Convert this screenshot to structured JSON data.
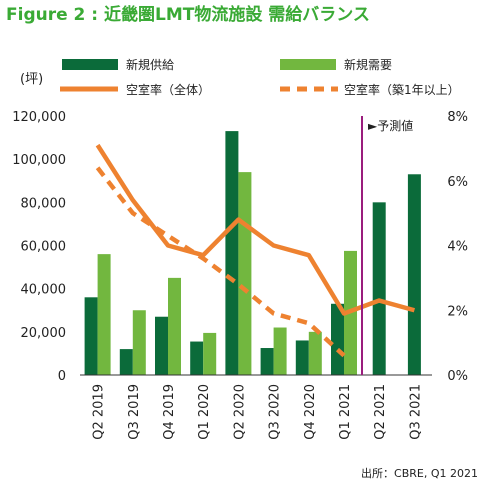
{
  "colors": {
    "supply": "#0b6b3a",
    "demand": "#72b73f",
    "vacancy_all": "#ee8230",
    "vacancy_new": "#ee8230",
    "forecast_line": "#9a1d7d",
    "title": "#3aaa35"
  },
  "chart_data": {
    "type": "bar",
    "title": "Figure 2 : 近畿圏LMT物流施設 需給バランス",
    "ylabel_left": "(坪)",
    "categories": [
      "Q2 2019",
      "Q3 2019",
      "Q4 2019",
      "Q1 2020",
      "Q2 2020",
      "Q3 2020",
      "Q4 2020",
      "Q1 2021",
      "Q2 2021",
      "Q3 2021"
    ],
    "y_left": {
      "min": 0,
      "max": 120000,
      "ticks": [
        "0",
        "20,000",
        "40,000",
        "60,000",
        "80,000",
        "100,000",
        "120,000"
      ]
    },
    "y_right": {
      "min": 0,
      "max": 8,
      "ticks": [
        "0%",
        "2%",
        "4%",
        "6%",
        "8%"
      ]
    },
    "series": [
      {
        "name": "新規供給",
        "kind": "bar",
        "axis": "left",
        "values": [
          36000,
          12000,
          27000,
          15500,
          113000,
          12500,
          16000,
          33000,
          80000,
          93000
        ]
      },
      {
        "name": "新規需要",
        "kind": "bar",
        "axis": "left",
        "values": [
          56000,
          30000,
          45000,
          19500,
          94000,
          22000,
          20000,
          57500,
          null,
          null
        ]
      },
      {
        "name": "空室率（全体）",
        "kind": "line",
        "axis": "right",
        "values": [
          7.1,
          5.4,
          4.0,
          3.7,
          4.8,
          4.0,
          3.7,
          1.9,
          2.3,
          2.0
        ]
      },
      {
        "name": "空室率（築1年以上）",
        "kind": "dashed-line",
        "axis": "right",
        "values": [
          6.4,
          5.0,
          4.3,
          3.6,
          2.8,
          1.9,
          1.6,
          0.6,
          null,
          null
        ]
      }
    ],
    "forecast_label": "►予測値",
    "grid": false,
    "legend_position": "top"
  },
  "source_note": "出所：CBRE, Q1 2021"
}
